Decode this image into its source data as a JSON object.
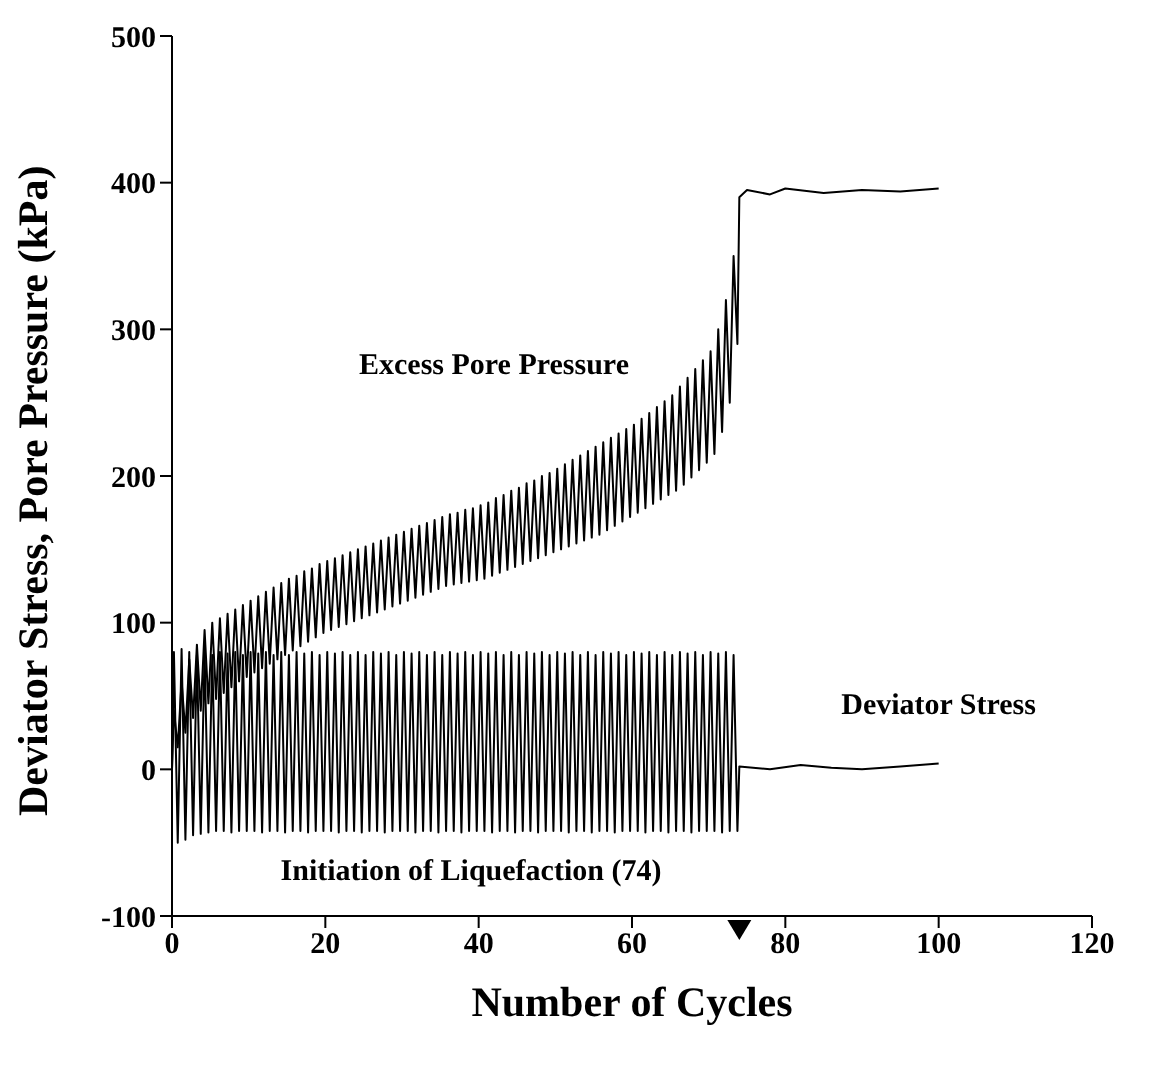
{
  "chart_data": {
    "type": "line",
    "xlabel": "Number of Cycles",
    "ylabel": "Deviator Stress, Pore Pressure (kPa)",
    "xlim": [
      0,
      120
    ],
    "xticks": [
      0,
      20,
      40,
      60,
      80,
      100,
      120
    ],
    "ylim": [
      -100,
      500
    ],
    "yticks": [
      -100,
      0,
      100,
      200,
      300,
      400,
      500
    ],
    "grid": false,
    "marker": "none",
    "line_style": "solid",
    "annotations": [
      "Excess Pore Pressure",
      "Deviator Stress",
      "Initiation of Liquefaction (74)"
    ],
    "series": [
      {
        "color": "#000000",
        "x": [
          0,
          0.25,
          0.75,
          1.25,
          1.75,
          2.25,
          2.75,
          3.25,
          3.75,
          4.25,
          4.75,
          5.25,
          5.75,
          6.25,
          6.75,
          7.25,
          7.75,
          8.25,
          8.75,
          9.25,
          9.75,
          10.25,
          10.75,
          11.25,
          11.75,
          12.25,
          12.75,
          13.25,
          13.75,
          14.25,
          14.75,
          15.25,
          15.75,
          16.25,
          16.75,
          17.25,
          17.75,
          18.25,
          18.75,
          19.25,
          19.75,
          20.25,
          20.75,
          21.25,
          21.75,
          22.25,
          22.75,
          23.25,
          23.75,
          24.25,
          24.75,
          25.25,
          25.75,
          26.25,
          26.75,
          27.25,
          27.75,
          28.25,
          28.75,
          29.25,
          29.75,
          30.25,
          30.75,
          31.25,
          31.75,
          32.25,
          32.75,
          33.25,
          33.75,
          34.25,
          34.75,
          35.25,
          35.75,
          36.25,
          36.75,
          37.25,
          37.75,
          38.25,
          38.75,
          39.25,
          39.75,
          40.25,
          40.75,
          41.25,
          41.75,
          42.25,
          42.75,
          43.25,
          43.75,
          44.25,
          44.75,
          45.25,
          45.75,
          46.25,
          46.75,
          47.25,
          47.75,
          48.25,
          48.75,
          49.25,
          49.75,
          50.25,
          50.75,
          51.25,
          51.75,
          52.25,
          52.75,
          53.25,
          53.75,
          54.25,
          54.75,
          55.25,
          55.75,
          56.25,
          56.75,
          57.25,
          57.75,
          58.25,
          58.75,
          59.25,
          59.75,
          60.25,
          60.75,
          61.25,
          61.75,
          62.25,
          62.75,
          63.25,
          63.75,
          64.25,
          64.75,
          65.25,
          65.75,
          66.25,
          66.75,
          67.25,
          67.75,
          68.25,
          68.75,
          69.25,
          69.75,
          70.25,
          70.75,
          71.25,
          71.75,
          72.25,
          72.75,
          73.25,
          73.75,
          74,
          75,
          78,
          80,
          85,
          90,
          95,
          100
        ],
        "values": [
          0,
          40,
          15,
          60,
          25,
          75,
          35,
          85,
          40,
          95,
          45,
          100,
          48,
          103,
          52,
          106,
          56,
          109,
          60,
          112,
          63,
          115,
          66,
          118,
          69,
          121,
          72,
          124,
          75,
          127,
          78,
          130,
          81,
          132,
          84,
          135,
          87,
          137,
          90,
          140,
          93,
          142,
          95,
          144,
          97,
          146,
          99,
          148,
          101,
          150,
          103,
          152,
          105,
          154,
          107,
          156,
          109,
          158,
          111,
          160,
          113,
          162,
          115,
          164,
          117,
          166,
          119,
          168,
          121,
          170,
          123,
          172,
          125,
          174,
          126,
          175,
          127,
          177,
          128,
          178,
          129,
          180,
          130,
          182,
          132,
          185,
          134,
          187,
          136,
          190,
          138,
          192,
          140,
          195,
          142,
          197,
          144,
          200,
          146,
          202,
          148,
          205,
          150,
          208,
          152,
          211,
          154,
          214,
          156,
          217,
          158,
          220,
          160,
          223,
          163,
          226,
          166,
          229,
          169,
          232,
          172,
          235,
          175,
          239,
          178,
          243,
          181,
          247,
          184,
          251,
          187,
          255,
          190,
          261,
          194,
          267,
          199,
          273,
          204,
          279,
          209,
          285,
          215,
          300,
          230,
          320,
          250,
          350,
          290,
          390,
          395,
          392,
          396,
          393,
          395,
          394,
          396
        ]
      },
      {
        "color": "#000000",
        "x": [
          0,
          0.25,
          0.75,
          1.25,
          1.75,
          2.25,
          2.75,
          3.25,
          3.75,
          4.25,
          4.75,
          5.25,
          5.75,
          6.25,
          6.75,
          7.25,
          7.75,
          8.25,
          8.75,
          9.25,
          9.75,
          10.25,
          10.75,
          11.25,
          11.75,
          12.25,
          12.75,
          13.25,
          13.75,
          14.25,
          14.75,
          15.25,
          15.75,
          16.25,
          16.75,
          17.25,
          17.75,
          18.25,
          18.75,
          19.25,
          19.75,
          20.25,
          20.75,
          21.25,
          21.75,
          22.25,
          22.75,
          23.25,
          23.75,
          24.25,
          24.75,
          25.25,
          25.75,
          26.25,
          26.75,
          27.25,
          27.75,
          28.25,
          28.75,
          29.25,
          29.75,
          30.25,
          30.75,
          31.25,
          31.75,
          32.25,
          32.75,
          33.25,
          33.75,
          34.25,
          34.75,
          35.25,
          35.75,
          36.25,
          36.75,
          37.25,
          37.75,
          38.25,
          38.75,
          39.25,
          39.75,
          40.25,
          40.75,
          41.25,
          41.75,
          42.25,
          42.75,
          43.25,
          43.75,
          44.25,
          44.75,
          45.25,
          45.75,
          46.25,
          46.75,
          47.25,
          47.75,
          48.25,
          48.75,
          49.25,
          49.75,
          50.25,
          50.75,
          51.25,
          51.75,
          52.25,
          52.75,
          53.25,
          53.75,
          54.25,
          54.75,
          55.25,
          55.75,
          56.25,
          56.75,
          57.25,
          57.75,
          58.25,
          58.75,
          59.25,
          59.75,
          60.25,
          60.75,
          61.25,
          61.75,
          62.25,
          62.75,
          63.25,
          63.75,
          64.25,
          64.75,
          65.25,
          65.75,
          66.25,
          66.75,
          67.25,
          67.75,
          68.25,
          68.75,
          69.25,
          69.75,
          70.25,
          70.75,
          71.25,
          71.75,
          72.25,
          72.75,
          73.25,
          73.75,
          74,
          78,
          82,
          86,
          90,
          95,
          100
        ],
        "values": [
          0,
          80,
          -50,
          82,
          -48,
          80,
          -45,
          78,
          -44,
          80,
          -43,
          78,
          -42,
          80,
          -42,
          79,
          -43,
          80,
          -42,
          78,
          -42,
          80,
          -42,
          79,
          -43,
          80,
          -42,
          78,
          -42,
          80,
          -43,
          78,
          -42,
          80,
          -42,
          79,
          -43,
          80,
          -42,
          78,
          -42,
          80,
          -42,
          79,
          -43,
          80,
          -42,
          78,
          -42,
          80,
          -43,
          78,
          -42,
          80,
          -42,
          79,
          -43,
          80,
          -42,
          78,
          -42,
          80,
          -42,
          79,
          -43,
          80,
          -42,
          78,
          -42,
          80,
          -43,
          78,
          -42,
          80,
          -42,
          79,
          -43,
          80,
          -42,
          78,
          -42,
          80,
          -42,
          79,
          -43,
          80,
          -42,
          78,
          -42,
          80,
          -43,
          78,
          -42,
          80,
          -42,
          79,
          -43,
          80,
          -42,
          78,
          -42,
          80,
          -42,
          79,
          -43,
          80,
          -42,
          78,
          -42,
          80,
          -43,
          78,
          -42,
          80,
          -42,
          79,
          -43,
          80,
          -42,
          78,
          -42,
          80,
          -42,
          79,
          -43,
          80,
          -42,
          78,
          -42,
          80,
          -43,
          78,
          -42,
          80,
          -42,
          79,
          -43,
          80,
          -42,
          78,
          -42,
          80,
          -42,
          79,
          -43,
          80,
          -42,
          78,
          -42,
          2,
          0,
          3,
          1,
          0,
          2,
          4
        ]
      }
    ]
  }
}
